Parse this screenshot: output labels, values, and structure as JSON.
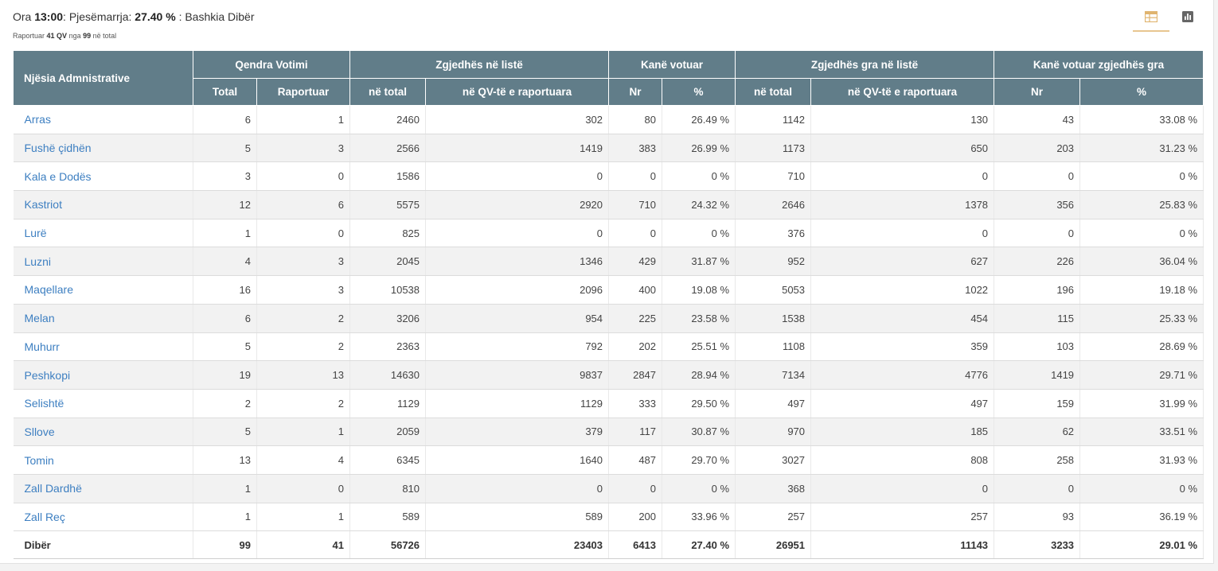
{
  "header": {
    "ora_label": "Ora",
    "time": "13:00",
    "participation_label": ": Pjesëmarrja:",
    "participation": "27.40 %",
    "municipality_text": ": Bashkia Dibër"
  },
  "subheader": {
    "prefix": "Raportuar",
    "reported": "41 QV",
    "middle": "nga",
    "total": "99",
    "suffix": "në total"
  },
  "view_tabs": {
    "table_icon": "table-icon",
    "chart_icon": "bar-chart-icon",
    "active": "table",
    "accent_color": "#e8c690"
  },
  "colors": {
    "header_bg": "#617d89",
    "link": "#3d7fc1",
    "stripe": "#f2f2f2"
  },
  "table": {
    "group_headers": {
      "unit": "Njësia Admnistrative",
      "centers": "Qendra Votimi",
      "voters": "Zgjedhës në listë",
      "voted": "Kanë votuar",
      "women_voters": "Zgjedhës gra në listë",
      "women_voted": "Kanë votuar zgjedhës gra"
    },
    "sub_headers": [
      "Total",
      "Raportuar",
      "në total",
      "në QV-të e raportuara",
      "Nr",
      "%",
      "në total",
      "në QV-të e raportuara",
      "Nr",
      "%"
    ],
    "rows": [
      [
        "Arras",
        "6",
        "1",
        "2460",
        "302",
        "80",
        "26.49 %",
        "1142",
        "130",
        "43",
        "33.08 %"
      ],
      [
        "Fushë çidhën",
        "5",
        "3",
        "2566",
        "1419",
        "383",
        "26.99 %",
        "1173",
        "650",
        "203",
        "31.23 %"
      ],
      [
        "Kala e Dodës",
        "3",
        "0",
        "1586",
        "0",
        "0",
        "0 %",
        "710",
        "0",
        "0",
        "0 %"
      ],
      [
        "Kastriot",
        "12",
        "6",
        "5575",
        "2920",
        "710",
        "24.32 %",
        "2646",
        "1378",
        "356",
        "25.83 %"
      ],
      [
        "Lurë",
        "1",
        "0",
        "825",
        "0",
        "0",
        "0 %",
        "376",
        "0",
        "0",
        "0 %"
      ],
      [
        "Luzni",
        "4",
        "3",
        "2045",
        "1346",
        "429",
        "31.87 %",
        "952",
        "627",
        "226",
        "36.04 %"
      ],
      [
        "Maqellare",
        "16",
        "3",
        "10538",
        "2096",
        "400",
        "19.08 %",
        "5053",
        "1022",
        "196",
        "19.18 %"
      ],
      [
        "Melan",
        "6",
        "2",
        "3206",
        "954",
        "225",
        "23.58 %",
        "1538",
        "454",
        "115",
        "25.33 %"
      ],
      [
        "Muhurr",
        "5",
        "2",
        "2363",
        "792",
        "202",
        "25.51 %",
        "1108",
        "359",
        "103",
        "28.69 %"
      ],
      [
        "Peshkopi",
        "19",
        "13",
        "14630",
        "9837",
        "2847",
        "28.94 %",
        "7134",
        "4776",
        "1419",
        "29.71 %"
      ],
      [
        "Selishtë",
        "2",
        "2",
        "1129",
        "1129",
        "333",
        "29.50 %",
        "497",
        "497",
        "159",
        "31.99 %"
      ],
      [
        "Sllove",
        "5",
        "1",
        "2059",
        "379",
        "117",
        "30.87 %",
        "970",
        "185",
        "62",
        "33.51 %"
      ],
      [
        "Tomin",
        "13",
        "4",
        "6345",
        "1640",
        "487",
        "29.70 %",
        "3027",
        "808",
        "258",
        "31.93 %"
      ],
      [
        "Zall Dardhë",
        "1",
        "0",
        "810",
        "0",
        "0",
        "0 %",
        "368",
        "0",
        "0",
        "0 %"
      ],
      [
        "Zall Reç",
        "1",
        "1",
        "589",
        "589",
        "200",
        "33.96 %",
        "257",
        "257",
        "93",
        "36.19 %"
      ]
    ],
    "total_row": [
      "Dibër",
      "99",
      "41",
      "56726",
      "23403",
      "6413",
      "27.40 %",
      "26951",
      "11143",
      "3233",
      "29.01 %"
    ]
  }
}
